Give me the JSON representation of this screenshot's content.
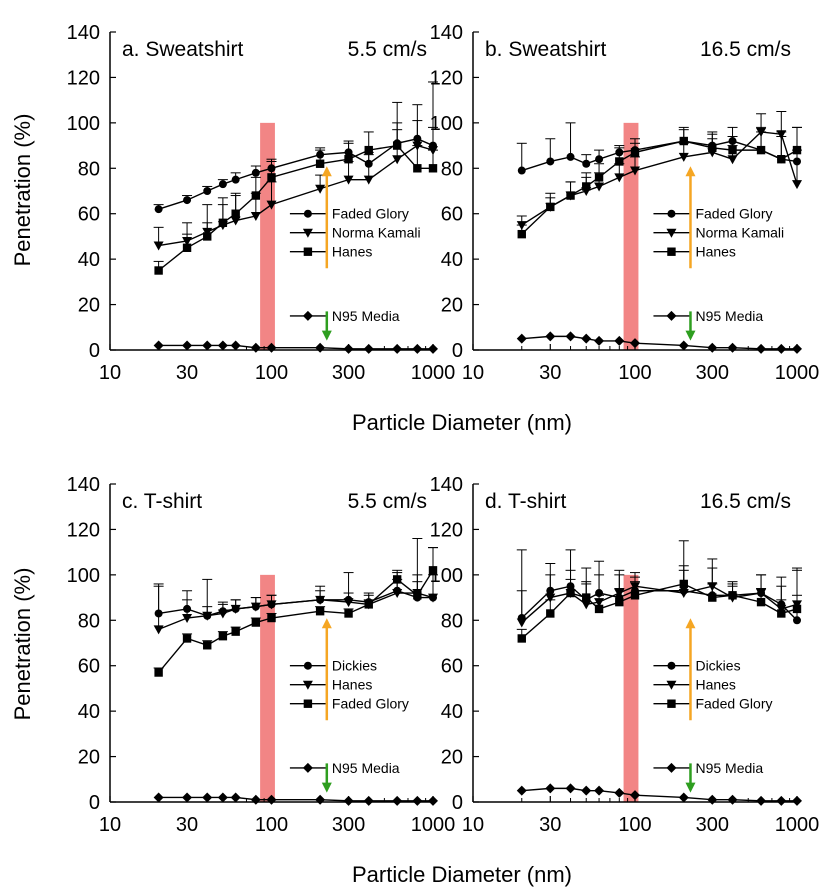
{
  "figure": {
    "ylabel": "Penetration (%)",
    "xlabel": "Particle Diameter (nm)"
  },
  "chart_data": [
    {
      "type": "line",
      "panel_label": "a. Sweatshirt",
      "velocity": "5.5 cm/s",
      "xscale": "log",
      "xlim": [
        10,
        1000
      ],
      "ylim": [
        0,
        140
      ],
      "xticks": [
        "10",
        "30",
        "100",
        "300",
        "1000"
      ],
      "yticks": [
        "0",
        "20",
        "40",
        "60",
        "80",
        "100",
        "120",
        "140"
      ],
      "highlight_band_nm": [
        85,
        105
      ],
      "legend": [
        "Faded Glory",
        "Norma Kamali",
        "Hanes"
      ],
      "n95_label": "N95 Media",
      "series": [
        {
          "name": "Faded Glory",
          "marker": "circle",
          "x": [
            20,
            30,
            40,
            50,
            60,
            80,
            100,
            200,
            300,
            400,
            600,
            800,
            1000
          ],
          "y": [
            62,
            66,
            70,
            73,
            75,
            78,
            80,
            86,
            87,
            82,
            91,
            93,
            90
          ],
          "err": [
            2,
            2,
            2,
            2,
            3,
            3,
            3,
            3,
            4,
            4,
            6,
            8,
            8
          ]
        },
        {
          "name": "Norma Kamali",
          "marker": "triangle-down",
          "x": [
            20,
            30,
            40,
            50,
            60,
            80,
            100,
            200,
            300,
            400,
            600,
            800,
            1000
          ],
          "y": [
            46,
            48,
            52,
            55,
            57,
            59,
            64,
            71,
            75,
            75,
            84,
            90,
            88
          ],
          "err": [
            8,
            8,
            12,
            12,
            12,
            10,
            10,
            6,
            8,
            12,
            25,
            18,
            30
          ]
        },
        {
          "name": "Hanes",
          "marker": "square",
          "x": [
            20,
            30,
            40,
            50,
            60,
            80,
            100,
            200,
            300,
            400,
            600,
            800,
            1000
          ],
          "y": [
            35,
            45,
            50,
            56,
            60,
            68,
            76,
            82,
            84,
            88,
            90,
            80,
            80
          ],
          "err": [
            4,
            6,
            6,
            8,
            8,
            8,
            8,
            6,
            8,
            8,
            10,
            10,
            8
          ]
        },
        {
          "name": "N95 Media",
          "marker": "diamond",
          "x": [
            20,
            30,
            40,
            50,
            60,
            80,
            100,
            200,
            300,
            400,
            600,
            800,
            1000
          ],
          "y": [
            2,
            2,
            2,
            2,
            2,
            1,
            1,
            1,
            0.5,
            0.5,
            0.5,
            0.5,
            0.5
          ],
          "err": [
            0,
            0,
            0,
            0,
            0,
            0,
            0,
            0,
            0,
            0,
            0,
            0,
            0
          ]
        }
      ]
    },
    {
      "type": "line",
      "panel_label": "b. Sweatshirt",
      "velocity": "16.5 cm/s",
      "xscale": "log",
      "xlim": [
        10,
        1000
      ],
      "ylim": [
        0,
        140
      ],
      "xticks": [
        "10",
        "30",
        "100",
        "300",
        "1000"
      ],
      "yticks": [
        "0",
        "20",
        "40",
        "60",
        "80",
        "100",
        "120",
        "140"
      ],
      "highlight_band_nm": [
        85,
        105
      ],
      "legend": [
        "Faded Glory",
        "Norma Kamali",
        "Hanes"
      ],
      "n95_label": "N95 Media",
      "series": [
        {
          "name": "Faded Glory",
          "marker": "circle",
          "x": [
            20,
            30,
            40,
            50,
            60,
            80,
            100,
            200,
            300,
            400,
            600,
            800,
            1000
          ],
          "y": [
            79,
            83,
            85,
            82,
            84,
            87,
            88,
            92,
            90,
            92,
            88,
            84,
            83
          ],
          "err": [
            12,
            10,
            15,
            4,
            4,
            3,
            3,
            5,
            6,
            6,
            10,
            12,
            15
          ]
        },
        {
          "name": "Norma Kamali",
          "marker": "triangle-down",
          "x": [
            20,
            30,
            40,
            50,
            60,
            80,
            100,
            200,
            300,
            400,
            600,
            800,
            1000
          ],
          "y": [
            55,
            63,
            68,
            70,
            72,
            76,
            79,
            85,
            87,
            84,
            96,
            95,
            73
          ],
          "err": [
            4,
            4,
            6,
            6,
            6,
            6,
            6,
            6,
            6,
            6,
            8,
            10,
            15
          ]
        },
        {
          "name": "Hanes",
          "marker": "square",
          "x": [
            20,
            30,
            40,
            50,
            60,
            80,
            100,
            200,
            300,
            400,
            600,
            800,
            1000
          ],
          "y": [
            51,
            63,
            68,
            72,
            76,
            83,
            87,
            92,
            89,
            88,
            88,
            84,
            88
          ],
          "err": [
            4,
            6,
            6,
            6,
            6,
            6,
            6,
            6,
            6,
            6,
            8,
            10,
            10
          ]
        },
        {
          "name": "N95 Media",
          "marker": "diamond",
          "x": [
            20,
            30,
            40,
            50,
            60,
            80,
            100,
            200,
            300,
            400,
            600,
            800,
            1000
          ],
          "y": [
            5,
            6,
            6,
            5,
            4,
            4,
            3,
            2,
            1,
            1,
            0.5,
            0.5,
            0.5
          ],
          "err": [
            0,
            0,
            0,
            0,
            0,
            0,
            0,
            0,
            0,
            0,
            0,
            0,
            0
          ]
        }
      ]
    },
    {
      "type": "line",
      "panel_label": "c. T-shirt",
      "velocity": "5.5 cm/s",
      "xscale": "log",
      "xlim": [
        10,
        1000
      ],
      "ylim": [
        0,
        140
      ],
      "xticks": [
        "10",
        "30",
        "100",
        "300",
        "1000"
      ],
      "yticks": [
        "0",
        "20",
        "40",
        "60",
        "80",
        "100",
        "120",
        "140"
      ],
      "highlight_band_nm": [
        85,
        105
      ],
      "legend": [
        "Dickies",
        "Hanes",
        "Faded Glory"
      ],
      "n95_label": "N95 Media",
      "series": [
        {
          "name": "Dickies",
          "marker": "circle",
          "x": [
            20,
            30,
            40,
            50,
            60,
            80,
            100,
            200,
            300,
            400,
            600,
            800,
            1000
          ],
          "y": [
            83,
            85,
            82,
            84,
            85,
            86,
            87,
            89,
            89,
            88,
            93,
            90,
            90
          ],
          "err": [
            12,
            8,
            16,
            4,
            4,
            4,
            4,
            6,
            12,
            4,
            8,
            26,
            22
          ]
        },
        {
          "name": "Hanes",
          "marker": "triangle-down",
          "x": [
            20,
            30,
            40,
            50,
            60,
            80,
            100,
            200,
            300,
            400,
            600,
            800,
            1000
          ],
          "y": [
            76,
            81,
            82,
            83,
            85,
            86,
            87,
            89,
            88,
            87,
            92,
            92,
            90
          ],
          "err": [
            20,
            8,
            4,
            4,
            4,
            4,
            4,
            4,
            4,
            4,
            6,
            8,
            10
          ]
        },
        {
          "name": "Faded Glory",
          "marker": "square",
          "x": [
            20,
            30,
            40,
            50,
            60,
            80,
            100,
            200,
            300,
            400,
            600,
            800,
            1000
          ],
          "y": [
            57,
            72,
            69,
            73,
            75,
            79,
            81,
            84,
            83,
            87,
            98,
            91,
            102
          ],
          "err": [
            2,
            2,
            2,
            2,
            2,
            2,
            2,
            2,
            2,
            2,
            4,
            6,
            10
          ]
        },
        {
          "name": "N95 Media",
          "marker": "diamond",
          "x": [
            20,
            30,
            40,
            50,
            60,
            80,
            100,
            200,
            300,
            400,
            600,
            800,
            1000
          ],
          "y": [
            2,
            2,
            2,
            2,
            2,
            1,
            1,
            1,
            0.5,
            0.5,
            0.5,
            0.5,
            0.5
          ],
          "err": [
            0,
            0,
            0,
            0,
            0,
            0,
            0,
            0,
            0,
            0,
            0,
            0,
            0
          ]
        }
      ]
    },
    {
      "type": "line",
      "panel_label": "d. T-shirt",
      "velocity": "16.5 cm/s",
      "xscale": "log",
      "xlim": [
        10,
        1000
      ],
      "ylim": [
        0,
        140
      ],
      "xticks": [
        "10",
        "30",
        "100",
        "300",
        "1000"
      ],
      "yticks": [
        "0",
        "20",
        "40",
        "60",
        "80",
        "100",
        "120",
        "140"
      ],
      "highlight_band_nm": [
        85,
        105
      ],
      "legend": [
        "Dickies",
        "Hanes",
        "Faded Glory"
      ],
      "n95_label": "N95 Media",
      "series": [
        {
          "name": "Dickies",
          "marker": "circle",
          "x": [
            20,
            30,
            40,
            50,
            60,
            80,
            100,
            200,
            300,
            400,
            600,
            800,
            1000
          ],
          "y": [
            81,
            93,
            95,
            89,
            92,
            90,
            93,
            93,
            91,
            91,
            92,
            87,
            80
          ],
          "err": [
            30,
            12,
            16,
            14,
            14,
            10,
            6,
            22,
            16,
            4,
            8,
            12,
            22
          ]
        },
        {
          "name": "Hanes",
          "marker": "triangle-down",
          "x": [
            20,
            30,
            40,
            50,
            60,
            80,
            100,
            200,
            300,
            400,
            600,
            800,
            1000
          ],
          "y": [
            79,
            90,
            92,
            87,
            88,
            92,
            95,
            92,
            95,
            90,
            92,
            85,
            87
          ],
          "err": [
            14,
            10,
            10,
            10,
            12,
            10,
            6,
            12,
            8,
            6,
            8,
            10,
            16
          ]
        },
        {
          "name": "Faded Glory",
          "marker": "square",
          "x": [
            20,
            30,
            40,
            50,
            60,
            80,
            100,
            200,
            300,
            400,
            600,
            800,
            1000
          ],
          "y": [
            72,
            83,
            92,
            90,
            85,
            88,
            91,
            96,
            90,
            91,
            88,
            83,
            85
          ],
          "err": [
            4,
            6,
            6,
            6,
            6,
            6,
            6,
            6,
            6,
            6,
            6,
            6,
            6
          ]
        },
        {
          "name": "N95 Media",
          "marker": "diamond",
          "x": [
            20,
            30,
            40,
            50,
            60,
            80,
            100,
            200,
            300,
            400,
            600,
            800,
            1000
          ],
          "y": [
            5,
            6,
            6,
            5,
            5,
            4,
            3,
            2,
            1,
            1,
            0.5,
            0.5,
            0.5
          ],
          "err": [
            0,
            0,
            0,
            0,
            0,
            0,
            0,
            0,
            0,
            0,
            0,
            0,
            0
          ]
        }
      ]
    }
  ]
}
